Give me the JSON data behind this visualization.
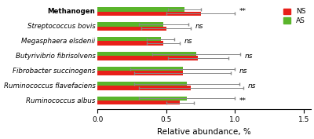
{
  "categories": [
    "Methanogen",
    "Streptococcus bovis",
    "Megasphaera elsdenii",
    "Butyrivibrio fibrisolvens",
    "Fibrobacter succinogens",
    "Ruminococcus flavefaciens",
    "Ruminococcus albus"
  ],
  "italic_labels": [
    false,
    true,
    true,
    true,
    true,
    true,
    true
  ],
  "ns_values": [
    0.75,
    0.5,
    0.48,
    0.73,
    0.62,
    0.68,
    0.6
  ],
  "as_values": [
    0.63,
    0.48,
    0.46,
    0.72,
    0.62,
    0.65,
    0.65
  ],
  "ns_errors": [
    0.25,
    0.18,
    0.12,
    0.22,
    0.35,
    0.38,
    0.1
  ],
  "as_errors": [
    0.12,
    0.18,
    0.1,
    0.32,
    0.38,
    0.38,
    0.35
  ],
  "significance": [
    "**",
    "ns",
    "ns",
    "ns",
    "ns",
    "ns",
    "**"
  ],
  "ns_color": "#e8201a",
  "as_color": "#5ab52b",
  "xlabel": "Relative abundance, %",
  "xlim": [
    0.0,
    1.55
  ],
  "xticks": [
    0.0,
    0.5,
    1.0,
    1.5
  ],
  "legend_labels": [
    "NS",
    "AS"
  ],
  "bar_height": 0.28,
  "figsize": [
    4.0,
    1.77
  ],
  "dpi": 100
}
